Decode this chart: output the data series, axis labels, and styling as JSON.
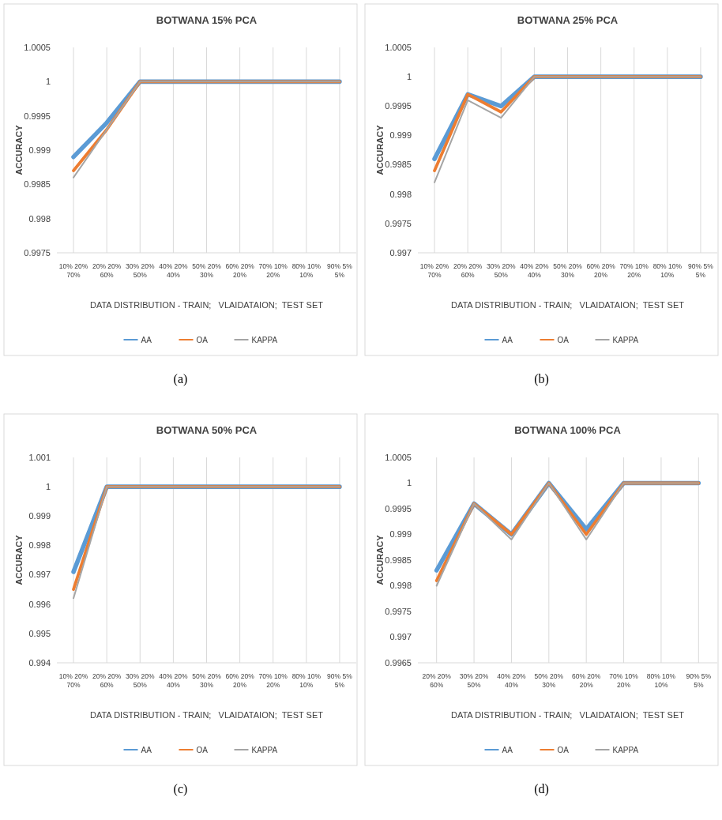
{
  "chart_data": [
    {
      "type": "line",
      "title": "BOTWANA 15% PCA",
      "xlabel": "DATA DISTRIBUTION - TRAIN;   VLAIDATAION;  TEST SET",
      "ylabel": "ACCURACY",
      "categories": [
        "10% 20% 70%",
        "20% 20% 60%",
        "30% 20% 50%",
        "40% 20% 40%",
        "50% 20% 30%",
        "60% 20% 20%",
        "70% 10% 20%",
        "80% 10% 10%",
        "90% 5% 5%"
      ],
      "series": [
        {
          "name": "AA",
          "color": "#5b9bd5",
          "values": [
            0.9989,
            0.9994,
            1,
            1,
            1,
            1,
            1,
            1,
            1
          ]
        },
        {
          "name": "OA",
          "color": "#ed7d31",
          "values": [
            0.9987,
            0.9993,
            1,
            1,
            1,
            1,
            1,
            1,
            1
          ]
        },
        {
          "name": "KAPPA",
          "color": "#a5a5a5",
          "values": [
            0.9986,
            0.9993,
            1,
            1,
            1,
            1,
            1,
            1,
            1
          ]
        }
      ],
      "ylim": [
        0.9975,
        1.0005
      ],
      "yticks": [
        0.9975,
        0.998,
        0.9985,
        0.999,
        0.9995,
        1,
        1.0005
      ],
      "grid": "x",
      "legend": "bottom",
      "annotations": [
        "(a)"
      ]
    },
    {
      "type": "line",
      "title": "BOTWANA 25% PCA",
      "xlabel": "DATA DISTRIBUTION - TRAIN;   VLAIDATAION;  TEST SET",
      "ylabel": "ACCURACY",
      "categories": [
        "10% 20% 70%",
        "20% 20% 60%",
        "30% 20% 50%",
        "40% 20% 40%",
        "50% 20% 30%",
        "60% 20% 20%",
        "70% 10% 20%",
        "80% 10% 10%",
        "90% 5% 5%"
      ],
      "series": [
        {
          "name": "AA",
          "color": "#5b9bd5",
          "values": [
            0.9986,
            0.9997,
            0.9995,
            1,
            1,
            1,
            1,
            1,
            1
          ]
        },
        {
          "name": "OA",
          "color": "#ed7d31",
          "values": [
            0.9984,
            0.9997,
            0.9994,
            1,
            1,
            1,
            1,
            1,
            1
          ]
        },
        {
          "name": "KAPPA",
          "color": "#a5a5a5",
          "values": [
            0.9982,
            0.9996,
            0.9993,
            1,
            1,
            1,
            1,
            1,
            1
          ]
        }
      ],
      "ylim": [
        0.997,
        1.0005
      ],
      "yticks": [
        0.997,
        0.9975,
        0.998,
        0.9985,
        0.999,
        0.9995,
        1,
        1.0005
      ],
      "grid": "x",
      "legend": "bottom",
      "annotations": [
        "(b)"
      ]
    },
    {
      "type": "line",
      "title": "BOTWANA 50% PCA",
      "xlabel": "DATA DISTRIBUTION - TRAIN;   VLAIDATAION;  TEST SET",
      "ylabel": "ACCURACY",
      "categories": [
        "10% 20% 70%",
        "20% 20% 60%",
        "30% 20% 50%",
        "40% 20% 40%",
        "50% 20% 30%",
        "60% 20% 20%",
        "70% 10% 20%",
        "80% 10% 10%",
        "90% 5% 5%"
      ],
      "series": [
        {
          "name": "AA",
          "color": "#5b9bd5",
          "values": [
            0.9971,
            1,
            1,
            1,
            1,
            1,
            1,
            1,
            1
          ]
        },
        {
          "name": "OA",
          "color": "#ed7d31",
          "values": [
            0.9965,
            1,
            1,
            1,
            1,
            1,
            1,
            1,
            1
          ]
        },
        {
          "name": "KAPPA",
          "color": "#a5a5a5",
          "values": [
            0.9962,
            1,
            1,
            1,
            1,
            1,
            1,
            1,
            1
          ]
        }
      ],
      "ylim": [
        0.994,
        1.001
      ],
      "yticks": [
        0.994,
        0.995,
        0.996,
        0.997,
        0.998,
        0.999,
        1,
        1.001
      ],
      "grid": "x",
      "legend": "bottom",
      "annotations": [
        "(c)"
      ]
    },
    {
      "type": "line",
      "title": "BOTWANA 100% PCA",
      "xlabel": "DATA DISTRIBUTION - TRAIN;   VLAIDATAION;  TEST SET",
      "ylabel": "ACCURACY",
      "categories": [
        "20% 20% 60%",
        "30% 20% 50%",
        "40% 20% 40%",
        "50% 20% 30%",
        "60% 20% 20%",
        "70% 10% 20%",
        "80% 10% 10%",
        "90% 5% 5%"
      ],
      "series": [
        {
          "name": "AA",
          "color": "#5b9bd5",
          "values": [
            0.9983,
            0.9996,
            0.999,
            1,
            0.9991,
            1,
            1,
            1
          ]
        },
        {
          "name": "OA",
          "color": "#ed7d31",
          "values": [
            0.9981,
            0.9996,
            0.999,
            1,
            0.999,
            1,
            1,
            1
          ]
        },
        {
          "name": "KAPPA",
          "color": "#a5a5a5",
          "values": [
            0.998,
            0.9996,
            0.9989,
            1,
            0.9989,
            1,
            1,
            1
          ]
        }
      ],
      "ylim": [
        0.9965,
        1.0005
      ],
      "yticks": [
        0.9965,
        0.997,
        0.9975,
        0.998,
        0.9985,
        0.999,
        0.9995,
        1,
        1.0005
      ],
      "grid": "x",
      "legend": "bottom",
      "annotations": [
        "(d)"
      ]
    }
  ]
}
